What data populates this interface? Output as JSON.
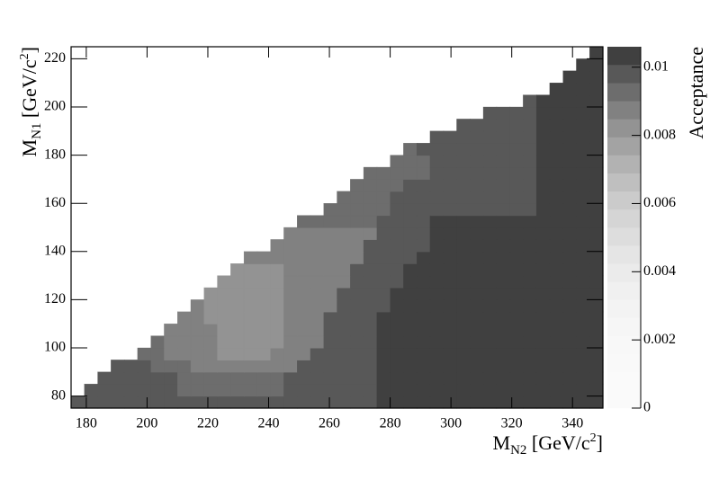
{
  "chart_data": {
    "type": "heatmap",
    "x_label": [
      "M",
      "N2",
      " [GeV/c",
      "2",
      "]"
    ],
    "y_label": [
      "M",
      "N1",
      " [GeV/c",
      "2",
      "]"
    ],
    "z_label": "Acceptance",
    "xlim": [
      175,
      350
    ],
    "ylim": [
      75,
      225
    ],
    "zlim": [
      0,
      0.0106
    ],
    "xticks": [
      180,
      200,
      220,
      240,
      260,
      280,
      300,
      320,
      340
    ],
    "yticks": [
      80,
      100,
      120,
      140,
      160,
      180,
      200,
      220
    ],
    "zticks": [
      0,
      0.002,
      0.004,
      0.006,
      0.008,
      0.01
    ],
    "palette": "gray",
    "z": [
      [
        0.0099,
        0.0099,
        0.0099,
        0.0099,
        0.0099,
        0.0099,
        0.0099,
        0.0099,
        0.0099,
        0.0099,
        0.0099,
        0.0099,
        0.0099,
        0.0099,
        0.0099,
        0.0099,
        0.0099,
        0.0099,
        0.0099,
        0.0099,
        0.0099,
        0.0099,
        0.0099,
        0.0104,
        0.0104,
        0.0104,
        0.0104,
        0.0104,
        0.0104,
        0.0104,
        0.0104,
        0.0104,
        0.0104,
        0.0104,
        0.0104,
        0.0104,
        0.0104,
        0.0104,
        0.0104,
        0.0104
      ],
      [
        null,
        0.0099,
        0.0099,
        0.0099,
        0.0099,
        0.0099,
        0.0099,
        0.0099,
        0.0093,
        0.0093,
        0.0093,
        0.0093,
        0.0093,
        0.0093,
        0.0093,
        0.0093,
        0.0099,
        0.0099,
        0.0099,
        0.0099,
        0.0099,
        0.0099,
        0.0099,
        0.0104,
        0.0104,
        0.0104,
        0.0104,
        0.0104,
        0.0104,
        0.0104,
        0.0104,
        0.0104,
        0.0104,
        0.0104,
        0.0104,
        0.0104,
        0.0104,
        0.0104,
        0.0104,
        0.0104
      ],
      [
        null,
        null,
        0.0099,
        0.0099,
        0.0099,
        0.0099,
        0.0099,
        0.0099,
        0.0093,
        0.0093,
        0.0093,
        0.0093,
        0.0093,
        0.0093,
        0.0093,
        0.0093,
        0.0099,
        0.0099,
        0.0099,
        0.0099,
        0.0099,
        0.0099,
        0.0099,
        0.0104,
        0.0104,
        0.0104,
        0.0104,
        0.0104,
        0.0104,
        0.0104,
        0.0104,
        0.0104,
        0.0104,
        0.0104,
        0.0104,
        0.0104,
        0.0104,
        0.0104,
        0.0104,
        0.0104
      ],
      [
        null,
        null,
        null,
        0.0099,
        0.0099,
        0.0099,
        0.0093,
        0.0093,
        0.0093,
        0.0088,
        0.0088,
        0.0088,
        0.0088,
        0.0088,
        0.0088,
        0.0088,
        0.0088,
        0.0099,
        0.0099,
        0.0099,
        0.0099,
        0.0099,
        0.0099,
        0.0104,
        0.0104,
        0.0104,
        0.0104,
        0.0104,
        0.0104,
        0.0104,
        0.0104,
        0.0104,
        0.0104,
        0.0104,
        0.0104,
        0.0104,
        0.0104,
        0.0104,
        0.0104,
        0.0104
      ],
      [
        null,
        null,
        null,
        null,
        null,
        0.0093,
        0.0093,
        0.0088,
        0.0088,
        0.0088,
        0.0088,
        0.0083,
        0.0083,
        0.0083,
        0.0083,
        0.0088,
        0.0088,
        0.0088,
        0.0099,
        0.0099,
        0.0099,
        0.0099,
        0.0099,
        0.0104,
        0.0104,
        0.0104,
        0.0104,
        0.0104,
        0.0104,
        0.0104,
        0.0104,
        0.0104,
        0.0104,
        0.0104,
        0.0104,
        0.0104,
        0.0104,
        0.0104,
        0.0104,
        0.0104
      ],
      [
        null,
        null,
        null,
        null,
        null,
        null,
        0.0093,
        0.0088,
        0.0088,
        0.0088,
        0.0088,
        0.0083,
        0.0083,
        0.0083,
        0.0083,
        0.0083,
        0.0088,
        0.0088,
        0.0088,
        0.0099,
        0.0099,
        0.0099,
        0.0099,
        0.0104,
        0.0104,
        0.0104,
        0.0104,
        0.0104,
        0.0104,
        0.0104,
        0.0104,
        0.0104,
        0.0104,
        0.0104,
        0.0104,
        0.0104,
        0.0104,
        0.0104,
        0.0104,
        0.0104
      ],
      [
        null,
        null,
        null,
        null,
        null,
        null,
        null,
        0.0088,
        0.0088,
        0.0088,
        0.0088,
        0.0083,
        0.0083,
        0.0083,
        0.0083,
        0.0083,
        0.0088,
        0.0088,
        0.0088,
        0.0099,
        0.0099,
        0.0099,
        0.0099,
        0.0104,
        0.0104,
        0.0104,
        0.0104,
        0.0104,
        0.0104,
        0.0104,
        0.0104,
        0.0104,
        0.0104,
        0.0104,
        0.0104,
        0.0104,
        0.0104,
        0.0104,
        0.0104,
        0.0104
      ],
      [
        null,
        null,
        null,
        null,
        null,
        null,
        null,
        null,
        0.0088,
        0.0088,
        0.0083,
        0.0083,
        0.0083,
        0.0083,
        0.0083,
        0.0083,
        0.0088,
        0.0088,
        0.0088,
        0.0099,
        0.0099,
        0.0099,
        0.0099,
        0.0104,
        0.0104,
        0.0104,
        0.0104,
        0.0104,
        0.0104,
        0.0104,
        0.0104,
        0.0104,
        0.0104,
        0.0104,
        0.0104,
        0.0104,
        0.0104,
        0.0104,
        0.0104,
        0.0104
      ],
      [
        null,
        null,
        null,
        null,
        null,
        null,
        null,
        null,
        null,
        0.0088,
        0.0083,
        0.0083,
        0.0083,
        0.0083,
        0.0083,
        0.0083,
        0.0088,
        0.0088,
        0.0088,
        0.0088,
        0.0099,
        0.0099,
        0.0099,
        0.0099,
        0.0104,
        0.0104,
        0.0104,
        0.0104,
        0.0104,
        0.0104,
        0.0104,
        0.0104,
        0.0104,
        0.0104,
        0.0104,
        0.0104,
        0.0104,
        0.0104,
        0.0104,
        0.0104
      ],
      [
        null,
        null,
        null,
        null,
        null,
        null,
        null,
        null,
        null,
        null,
        0.0083,
        0.0083,
        0.0083,
        0.0083,
        0.0083,
        0.0083,
        0.0088,
        0.0088,
        0.0088,
        0.0088,
        0.0099,
        0.0099,
        0.0099,
        0.0099,
        0.0104,
        0.0104,
        0.0104,
        0.0104,
        0.0104,
        0.0104,
        0.0104,
        0.0104,
        0.0104,
        0.0104,
        0.0104,
        0.0104,
        0.0104,
        0.0104,
        0.0104,
        0.0104
      ],
      [
        null,
        null,
        null,
        null,
        null,
        null,
        null,
        null,
        null,
        null,
        null,
        0.0083,
        0.0083,
        0.0083,
        0.0083,
        0.0083,
        0.0088,
        0.0088,
        0.0088,
        0.0088,
        0.0088,
        0.0099,
        0.0099,
        0.0099,
        0.0099,
        0.0104,
        0.0104,
        0.0104,
        0.0104,
        0.0104,
        0.0104,
        0.0104,
        0.0104,
        0.0104,
        0.0104,
        0.0104,
        0.0104,
        0.0104,
        0.0104,
        0.0104
      ],
      [
        null,
        null,
        null,
        null,
        null,
        null,
        null,
        null,
        null,
        null,
        null,
        null,
        0.0083,
        0.0083,
        0.0083,
        0.0083,
        0.0088,
        0.0088,
        0.0088,
        0.0088,
        0.0088,
        0.0099,
        0.0099,
        0.0099,
        0.0099,
        0.0104,
        0.0104,
        0.0104,
        0.0104,
        0.0104,
        0.0104,
        0.0104,
        0.0104,
        0.0104,
        0.0104,
        0.0104,
        0.0104,
        0.0104,
        0.0104,
        0.0104
      ],
      [
        null,
        null,
        null,
        null,
        null,
        null,
        null,
        null,
        null,
        null,
        null,
        null,
        null,
        0.0088,
        0.0088,
        0.0088,
        0.0088,
        0.0088,
        0.0088,
        0.0088,
        0.0088,
        0.0088,
        0.0099,
        0.0099,
        0.0099,
        0.0099,
        0.0104,
        0.0104,
        0.0104,
        0.0104,
        0.0104,
        0.0104,
        0.0104,
        0.0104,
        0.0104,
        0.0104,
        0.0104,
        0.0104,
        0.0104,
        0.0104
      ],
      [
        null,
        null,
        null,
        null,
        null,
        null,
        null,
        null,
        null,
        null,
        null,
        null,
        null,
        null,
        null,
        0.0088,
        0.0088,
        0.0088,
        0.0088,
        0.0088,
        0.0088,
        0.0088,
        0.0099,
        0.0099,
        0.0099,
        0.0099,
        0.0099,
        0.0104,
        0.0104,
        0.0104,
        0.0104,
        0.0104,
        0.0104,
        0.0104,
        0.0104,
        0.0104,
        0.0104,
        0.0104,
        0.0104,
        0.0104
      ],
      [
        null,
        null,
        null,
        null,
        null,
        null,
        null,
        null,
        null,
        null,
        null,
        null,
        null,
        null,
        null,
        null,
        0.0088,
        0.0088,
        0.0088,
        0.0088,
        0.0088,
        0.0088,
        0.0088,
        0.0099,
        0.0099,
        0.0099,
        0.0099,
        0.0104,
        0.0104,
        0.0104,
        0.0104,
        0.0104,
        0.0104,
        0.0104,
        0.0104,
        0.0104,
        0.0104,
        0.0104,
        0.0104,
        0.0104
      ],
      [
        null,
        null,
        null,
        null,
        null,
        null,
        null,
        null,
        null,
        null,
        null,
        null,
        null,
        null,
        null,
        null,
        null,
        0.0093,
        0.0093,
        0.0093,
        0.0093,
        0.0093,
        0.0093,
        0.0099,
        0.0099,
        0.0099,
        0.0099,
        0.0104,
        0.0104,
        0.0104,
        0.0104,
        0.0104,
        0.0104,
        0.0104,
        0.0104,
        0.0104,
        0.0104,
        0.0104,
        0.0104,
        0.0104
      ],
      [
        null,
        null,
        null,
        null,
        null,
        null,
        null,
        null,
        null,
        null,
        null,
        null,
        null,
        null,
        null,
        null,
        null,
        null,
        null,
        0.0093,
        0.0093,
        0.0093,
        0.0093,
        0.0093,
        0.0099,
        0.0099,
        0.0099,
        0.0099,
        0.0099,
        0.0099,
        0.0099,
        0.0099,
        0.0099,
        0.0099,
        0.0099,
        0.0104,
        0.0104,
        0.0104,
        0.0104,
        0.0104
      ],
      [
        null,
        null,
        null,
        null,
        null,
        null,
        null,
        null,
        null,
        null,
        null,
        null,
        null,
        null,
        null,
        null,
        null,
        null,
        null,
        null,
        0.0093,
        0.0093,
        0.0093,
        0.0093,
        0.0099,
        0.0099,
        0.0099,
        0.0099,
        0.0099,
        0.0099,
        0.0099,
        0.0099,
        0.0099,
        0.0099,
        0.0099,
        0.0104,
        0.0104,
        0.0104,
        0.0104,
        0.0104
      ],
      [
        null,
        null,
        null,
        null,
        null,
        null,
        null,
        null,
        null,
        null,
        null,
        null,
        null,
        null,
        null,
        null,
        null,
        null,
        null,
        null,
        null,
        0.0093,
        0.0093,
        0.0093,
        0.0093,
        0.0099,
        0.0099,
        0.0099,
        0.0099,
        0.0099,
        0.0099,
        0.0099,
        0.0099,
        0.0099,
        0.0099,
        0.0104,
        0.0104,
        0.0104,
        0.0104,
        0.0104
      ],
      [
        null,
        null,
        null,
        null,
        null,
        null,
        null,
        null,
        null,
        null,
        null,
        null,
        null,
        null,
        null,
        null,
        null,
        null,
        null,
        null,
        null,
        null,
        0.0093,
        0.0093,
        0.0093,
        0.0093,
        0.0093,
        0.0099,
        0.0099,
        0.0099,
        0.0099,
        0.0099,
        0.0099,
        0.0099,
        0.0099,
        0.0104,
        0.0104,
        0.0104,
        0.0104,
        0.0104
      ],
      [
        null,
        null,
        null,
        null,
        null,
        null,
        null,
        null,
        null,
        null,
        null,
        null,
        null,
        null,
        null,
        null,
        null,
        null,
        null,
        null,
        null,
        null,
        null,
        null,
        0.0093,
        0.0093,
        0.0093,
        0.0099,
        0.0099,
        0.0099,
        0.0099,
        0.0099,
        0.0099,
        0.0099,
        0.0099,
        0.0104,
        0.0104,
        0.0104,
        0.0104,
        0.0104
      ],
      [
        null,
        null,
        null,
        null,
        null,
        null,
        null,
        null,
        null,
        null,
        null,
        null,
        null,
        null,
        null,
        null,
        null,
        null,
        null,
        null,
        null,
        null,
        null,
        null,
        null,
        0.0093,
        0.0099,
        0.0099,
        0.0099,
        0.0099,
        0.0099,
        0.0099,
        0.0099,
        0.0099,
        0.0099,
        0.0104,
        0.0104,
        0.0104,
        0.0104,
        0.0104
      ],
      [
        null,
        null,
        null,
        null,
        null,
        null,
        null,
        null,
        null,
        null,
        null,
        null,
        null,
        null,
        null,
        null,
        null,
        null,
        null,
        null,
        null,
        null,
        null,
        null,
        null,
        null,
        null,
        0.0099,
        0.0099,
        0.0099,
        0.0099,
        0.0099,
        0.0099,
        0.0099,
        0.0099,
        0.0104,
        0.0104,
        0.0104,
        0.0104,
        0.0104
      ],
      [
        null,
        null,
        null,
        null,
        null,
        null,
        null,
        null,
        null,
        null,
        null,
        null,
        null,
        null,
        null,
        null,
        null,
        null,
        null,
        null,
        null,
        null,
        null,
        null,
        null,
        null,
        null,
        null,
        null,
        0.0099,
        0.0099,
        0.0099,
        0.0099,
        0.0099,
        0.0099,
        0.0104,
        0.0104,
        0.0104,
        0.0104,
        0.0104
      ],
      [
        null,
        null,
        null,
        null,
        null,
        null,
        null,
        null,
        null,
        null,
        null,
        null,
        null,
        null,
        null,
        null,
        null,
        null,
        null,
        null,
        null,
        null,
        null,
        null,
        null,
        null,
        null,
        null,
        null,
        null,
        null,
        0.0099,
        0.0099,
        0.0099,
        0.0099,
        0.0104,
        0.0104,
        0.0104,
        0.0104,
        0.0104
      ],
      [
        null,
        null,
        null,
        null,
        null,
        null,
        null,
        null,
        null,
        null,
        null,
        null,
        null,
        null,
        null,
        null,
        null,
        null,
        null,
        null,
        null,
        null,
        null,
        null,
        null,
        null,
        null,
        null,
        null,
        null,
        null,
        null,
        null,
        null,
        0.0099,
        0.0104,
        0.0104,
        0.0104,
        0.0104,
        0.0104
      ],
      [
        null,
        null,
        null,
        null,
        null,
        null,
        null,
        null,
        null,
        null,
        null,
        null,
        null,
        null,
        null,
        null,
        null,
        null,
        null,
        null,
        null,
        null,
        null,
        null,
        null,
        null,
        null,
        null,
        null,
        null,
        null,
        null,
        null,
        null,
        null,
        null,
        0.0104,
        0.0104,
        0.0104,
        0.0104
      ],
      [
        null,
        null,
        null,
        null,
        null,
        null,
        null,
        null,
        null,
        null,
        null,
        null,
        null,
        null,
        null,
        null,
        null,
        null,
        null,
        null,
        null,
        null,
        null,
        null,
        null,
        null,
        null,
        null,
        null,
        null,
        null,
        null,
        null,
        null,
        null,
        null,
        null,
        0.0104,
        0.0104,
        0.0104
      ],
      [
        null,
        null,
        null,
        null,
        null,
        null,
        null,
        null,
        null,
        null,
        null,
        null,
        null,
        null,
        null,
        null,
        null,
        null,
        null,
        null,
        null,
        null,
        null,
        null,
        null,
        null,
        null,
        null,
        null,
        null,
        null,
        null,
        null,
        null,
        null,
        null,
        null,
        null,
        0.0104,
        0.0104
      ],
      [
        null,
        null,
        null,
        null,
        null,
        null,
        null,
        null,
        null,
        null,
        null,
        null,
        null,
        null,
        null,
        null,
        null,
        null,
        null,
        null,
        null,
        null,
        null,
        null,
        null,
        null,
        null,
        null,
        null,
        null,
        null,
        null,
        null,
        null,
        null,
        null,
        null,
        null,
        null,
        0.0104
      ]
    ]
  }
}
